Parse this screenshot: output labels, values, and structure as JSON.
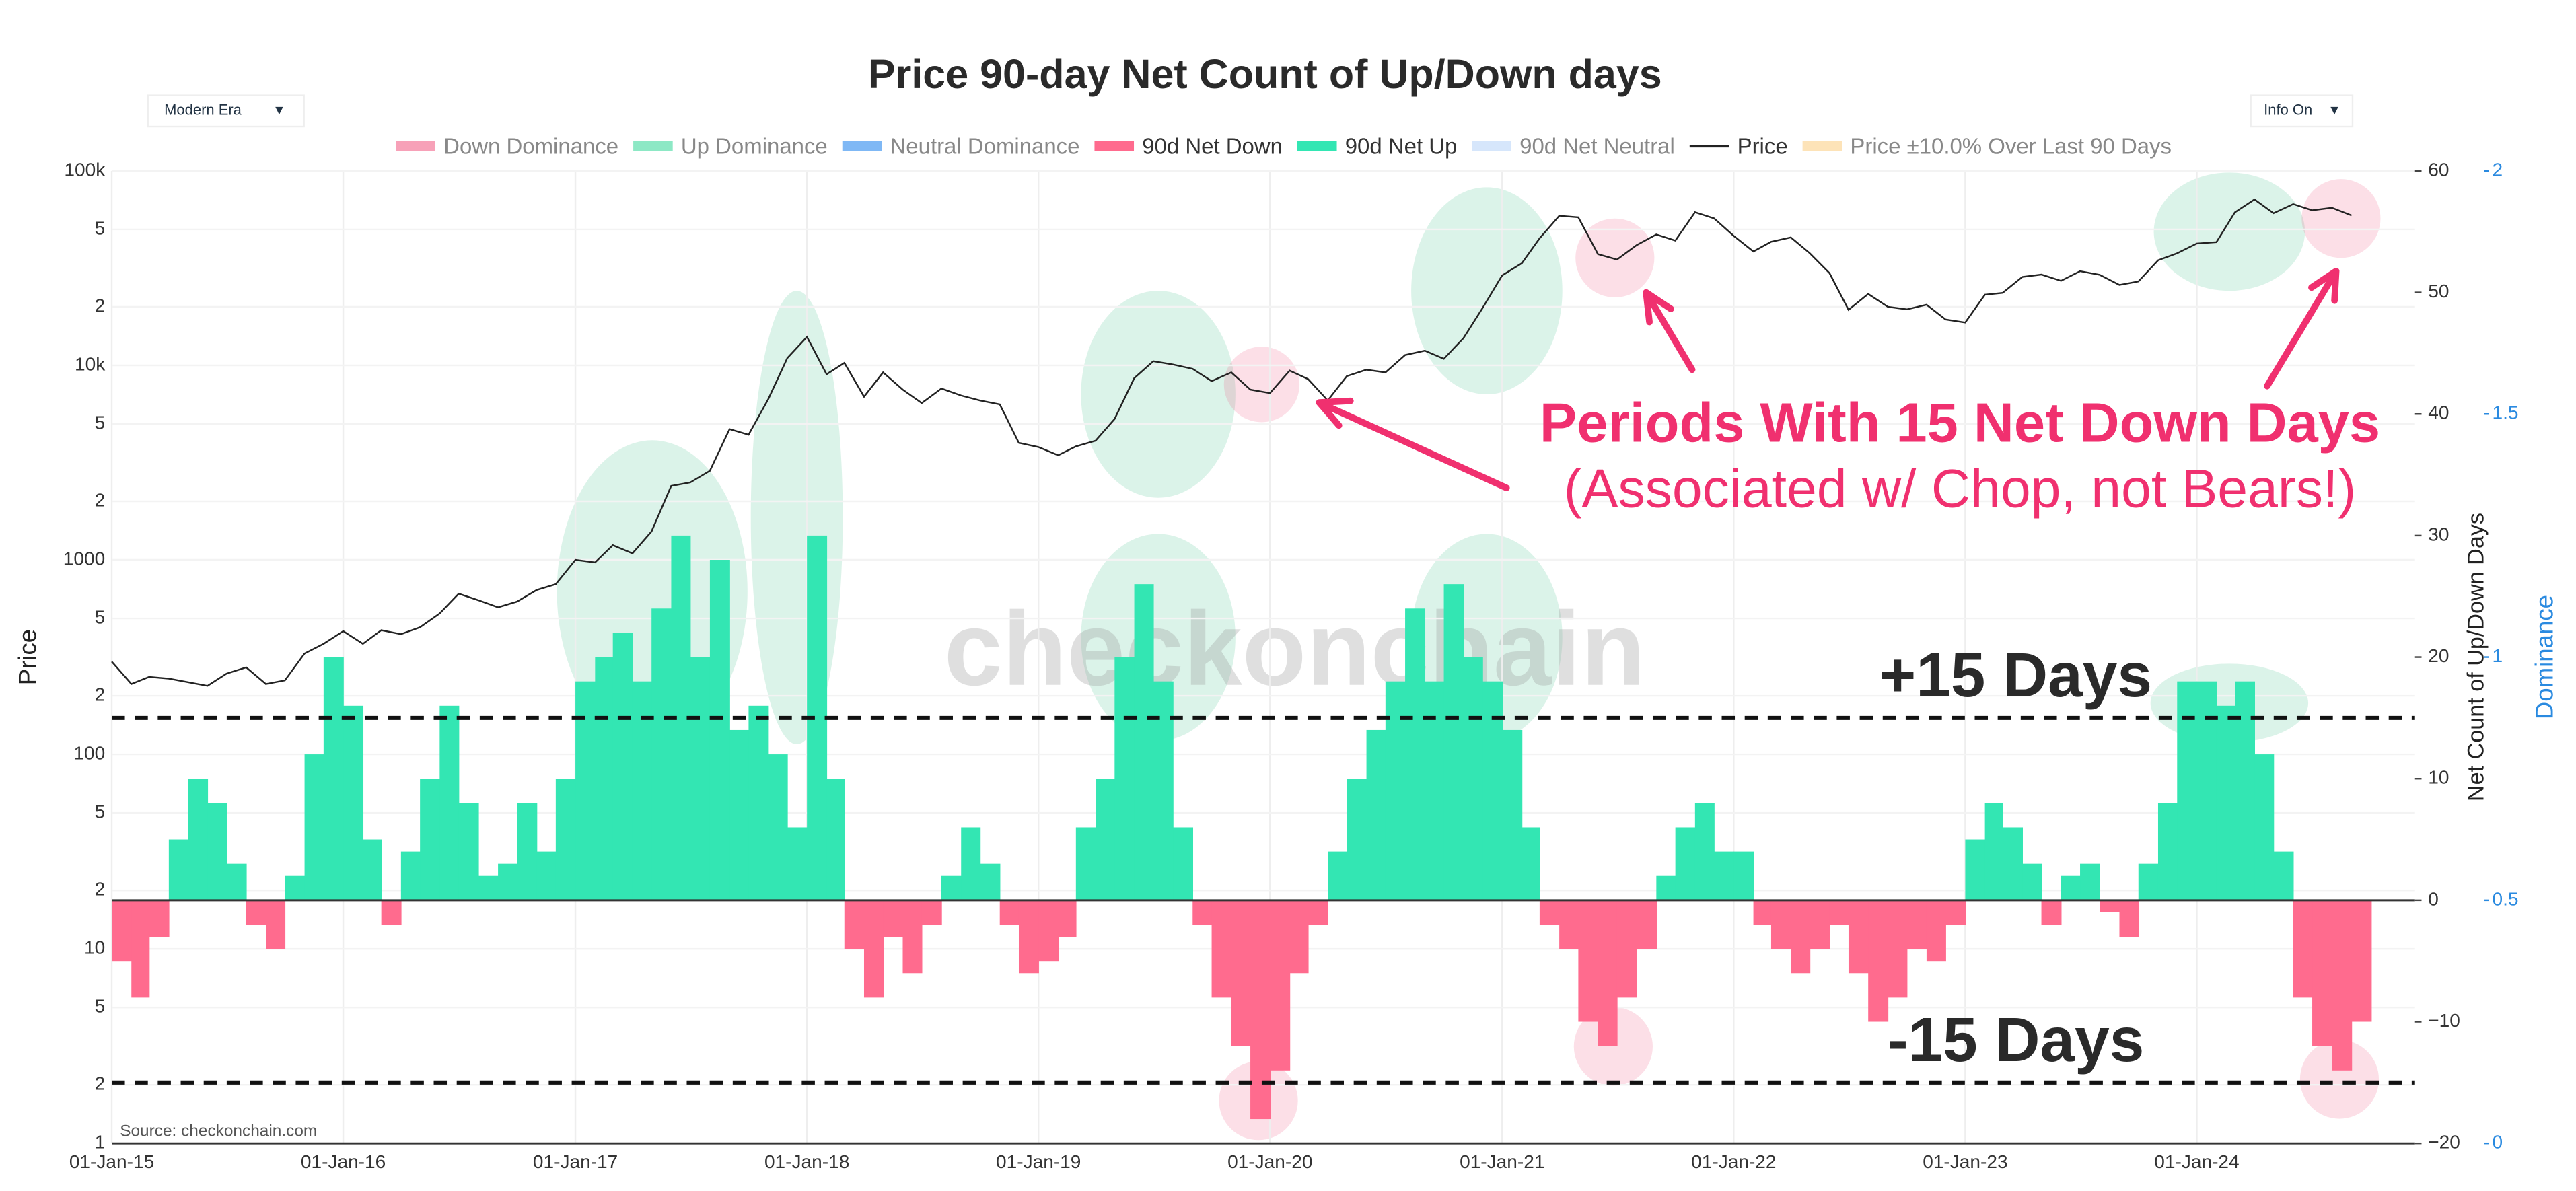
{
  "chart_data": {
    "type": "combo",
    "title": "Price 90-day Net Count of Up/Down days",
    "controls": [
      "Modern Era",
      "Info On"
    ],
    "x": [
      "2015-01-01",
      "2015-02-01",
      "2015-03-01",
      "2015-04-01",
      "2015-05-01",
      "2015-06-01",
      "2015-07-01",
      "2015-08-01",
      "2015-09-01",
      "2015-10-01",
      "2015-11-01",
      "2015-12-01",
      "2016-01-01",
      "2016-02-01",
      "2016-03-01",
      "2016-04-01",
      "2016-05-01",
      "2016-06-01",
      "2016-07-01",
      "2016-08-01",
      "2016-09-01",
      "2016-10-01",
      "2016-11-01",
      "2016-12-01",
      "2017-01-01",
      "2017-02-01",
      "2017-03-01",
      "2017-04-01",
      "2017-05-01",
      "2017-06-01",
      "2017-07-01",
      "2017-08-01",
      "2017-09-01",
      "2017-10-01",
      "2017-11-01",
      "2017-12-01",
      "2018-01-01",
      "2018-02-01",
      "2018-03-01",
      "2018-04-01",
      "2018-05-01",
      "2018-06-01",
      "2018-07-01",
      "2018-08-01",
      "2018-09-01",
      "2018-10-01",
      "2018-11-01",
      "2018-12-01",
      "2019-01-01",
      "2019-02-01",
      "2019-03-01",
      "2019-04-01",
      "2019-05-01",
      "2019-06-01",
      "2019-07-01",
      "2019-08-01",
      "2019-09-01",
      "2019-10-01",
      "2019-11-01",
      "2019-12-01",
      "2020-01-01",
      "2020-02-01",
      "2020-03-01",
      "2020-04-01",
      "2020-05-01",
      "2020-06-01",
      "2020-07-01",
      "2020-08-01",
      "2020-09-01",
      "2020-10-01",
      "2020-11-01",
      "2020-12-01",
      "2021-01-01",
      "2021-02-01",
      "2021-03-01",
      "2021-04-01",
      "2021-05-01",
      "2021-06-01",
      "2021-07-01",
      "2021-08-01",
      "2021-09-01",
      "2021-10-01",
      "2021-11-01",
      "2021-12-01",
      "2022-01-01",
      "2022-02-01",
      "2022-03-01",
      "2022-04-01",
      "2022-05-01",
      "2022-06-01",
      "2022-07-01",
      "2022-08-01",
      "2022-09-01",
      "2022-10-01",
      "2022-11-01",
      "2022-12-01",
      "2023-01-01",
      "2023-02-01",
      "2023-03-01",
      "2023-04-01",
      "2023-05-01",
      "2023-06-01",
      "2023-07-01",
      "2023-08-01",
      "2023-09-01",
      "2023-10-01",
      "2023-11-01",
      "2023-12-01",
      "2024-01-01",
      "2024-02-01",
      "2024-03-01",
      "2024-04-01",
      "2024-05-01",
      "2024-06-01",
      "2024-07-01",
      "2024-08-01",
      "2024-09-01"
    ],
    "series": [
      {
        "name": "Down Dominance",
        "color": "#f7a1b8"
      },
      {
        "name": "Up Dominance",
        "color": "#8de8c5"
      },
      {
        "name": "Neutral Dominance",
        "color": "#7fb8f5"
      },
      {
        "name": "90d Net Down",
        "type": "bar",
        "axis": "y2",
        "color": "#ff6b8e",
        "values": [
          -5,
          -8,
          -3,
          null,
          null,
          null,
          null,
          -2,
          -4,
          null,
          null,
          null,
          null,
          null,
          -2,
          null,
          null,
          null,
          null,
          null,
          null,
          null,
          null,
          null,
          null,
          null,
          null,
          null,
          null,
          null,
          null,
          null,
          null,
          null,
          null,
          null,
          null,
          null,
          -4,
          -8,
          -3,
          -6,
          -2,
          null,
          null,
          null,
          -2,
          -6,
          -5,
          -3,
          null,
          null,
          null,
          null,
          null,
          null,
          -2,
          -8,
          -12,
          -18,
          -14,
          -6,
          -2,
          null,
          null,
          null,
          null,
          null,
          null,
          null,
          null,
          null,
          null,
          null,
          -2,
          -4,
          -10,
          -12,
          -8,
          -4,
          null,
          null,
          null,
          null,
          null,
          -2,
          -4,
          -6,
          -4,
          -2,
          -6,
          -10,
          -8,
          -4,
          -5,
          -2,
          null,
          null,
          null,
          null,
          -2,
          null,
          null,
          -1,
          -3,
          null,
          null,
          null,
          null,
          null,
          null,
          null,
          null,
          -8,
          -12,
          -14,
          -10
        ]
      },
      {
        "name": "90d Net Up",
        "type": "bar",
        "axis": "y2",
        "color": "#33e6b3",
        "values": [
          null,
          null,
          null,
          5,
          10,
          8,
          3,
          null,
          null,
          2,
          12,
          20,
          16,
          5,
          null,
          4,
          10,
          16,
          8,
          2,
          3,
          8,
          4,
          10,
          18,
          20,
          22,
          18,
          24,
          30,
          20,
          28,
          14,
          16,
          12,
          6,
          30,
          10,
          null,
          null,
          null,
          null,
          null,
          2,
          6,
          3,
          null,
          null,
          null,
          null,
          6,
          10,
          20,
          26,
          18,
          6,
          null,
          null,
          null,
          null,
          null,
          null,
          null,
          4,
          10,
          14,
          18,
          24,
          18,
          26,
          20,
          18,
          14,
          6,
          null,
          null,
          null,
          null,
          null,
          null,
          2,
          6,
          8,
          4,
          4,
          null,
          null,
          null,
          null,
          null,
          null,
          null,
          null,
          null,
          null,
          null,
          5,
          8,
          6,
          3,
          null,
          2,
          3,
          null,
          null,
          3,
          8,
          18,
          18,
          16,
          18,
          12,
          4,
          null,
          null,
          null,
          null
        ]
      },
      {
        "name": "90d Net Neutral",
        "color": "#d6e6fb"
      },
      {
        "name": "Price",
        "type": "line",
        "axis": "y",
        "color": "#222222",
        "values": [
          300,
          230,
          250,
          245,
          235,
          225,
          260,
          280,
          230,
          240,
          330,
          370,
          430,
          370,
          435,
          415,
          450,
          530,
          670,
          620,
          570,
          610,
          700,
          750,
          1000,
          970,
          1190,
          1080,
          1400,
          2400,
          2500,
          2870,
          4700,
          4400,
          6700,
          10900,
          14000,
          9000,
          10300,
          6900,
          9200,
          7500,
          6400,
          7600,
          7000,
          6600,
          6300,
          4000,
          3800,
          3450,
          3830,
          4100,
          5300,
          8600,
          10500,
          10100,
          9600,
          8300,
          9200,
          7500,
          7200,
          9400,
          8500,
          6600,
          8800,
          9500,
          9200,
          11300,
          11900,
          10800,
          13800,
          19700,
          29000,
          33500,
          45000,
          58800,
          57700,
          37300,
          35000,
          41500,
          47100,
          43800,
          61300,
          57000,
          46300,
          38500,
          43200,
          45500,
          37700,
          29800,
          19300,
          23300,
          20000,
          19400,
          20500,
          17200,
          16600,
          23100,
          23600,
          28500,
          29300,
          27200,
          30500,
          29200,
          25900,
          27000,
          34700,
          37700,
          42300,
          43000,
          61200,
          71300,
          60600,
          67500,
          62700,
          64600,
          59000
        ]
      },
      {
        "name": "Price ±10.0% Over Last 90 Days",
        "color": "#fde3b8"
      }
    ],
    "xlim": [
      "2015-01-01",
      "2024-12-10"
    ],
    "xticks": [
      {
        "value": "2015-01-01",
        "label": "01-Jan-15"
      },
      {
        "value": "2016-01-01",
        "label": "01-Jan-16"
      },
      {
        "value": "2017-01-01",
        "label": "01-Jan-17"
      },
      {
        "value": "2018-01-01",
        "label": "01-Jan-18"
      },
      {
        "value": "2019-01-01",
        "label": "01-Jan-19"
      },
      {
        "value": "2020-01-01",
        "label": "01-Jan-20"
      },
      {
        "value": "2021-01-01",
        "label": "01-Jan-21"
      },
      {
        "value": "2022-01-01",
        "label": "01-Jan-22"
      },
      {
        "value": "2023-01-01",
        "label": "01-Jan-23"
      },
      {
        "value": "2024-01-01",
        "label": "01-Jan-24"
      }
    ],
    "ylabel": "Price",
    "ylog": true,
    "ylim": [
      1,
      100000
    ],
    "yticks": [
      1,
      2,
      5,
      10,
      {
        "value": 20,
        "label": "2"
      },
      {
        "value": 50,
        "label": "5"
      },
      100,
      {
        "value": 200,
        "label": "2"
      },
      {
        "value": 500,
        "label": "5"
      },
      1000,
      {
        "value": 2000,
        "label": "2"
      },
      {
        "value": 5000,
        "label": "5"
      },
      {
        "value": 10000,
        "label": "10k"
      },
      {
        "value": 20000,
        "label": "2"
      },
      {
        "value": 50000,
        "label": "5"
      },
      {
        "value": 100000,
        "label": "100k"
      }
    ],
    "y2label": "Net Count of Up/Down Days",
    "y2lim": [
      -20,
      60
    ],
    "y2ticks": [
      {
        "value": -20,
        "label": "−20"
      },
      {
        "value": -10,
        "label": "−10"
      },
      0,
      10,
      20,
      30,
      40,
      50,
      60
    ],
    "y3label": "Dominance",
    "y3lim": [
      0,
      2
    ],
    "y3ticks": [
      0,
      0.5,
      1,
      1.5,
      2
    ],
    "y3color": "#2a8ae0",
    "grid": true,
    "hlines": [
      {
        "value": 15,
        "label": "+15 Days"
      },
      {
        "value": -15,
        "label": "-15 Days"
      }
    ],
    "annotations": [
      "Periods With 15 Net Down Days",
      "(Associated w/ Chop, not Bears!)"
    ],
    "watermark": "checkonchain",
    "source": "Source: checkonchain.com"
  }
}
